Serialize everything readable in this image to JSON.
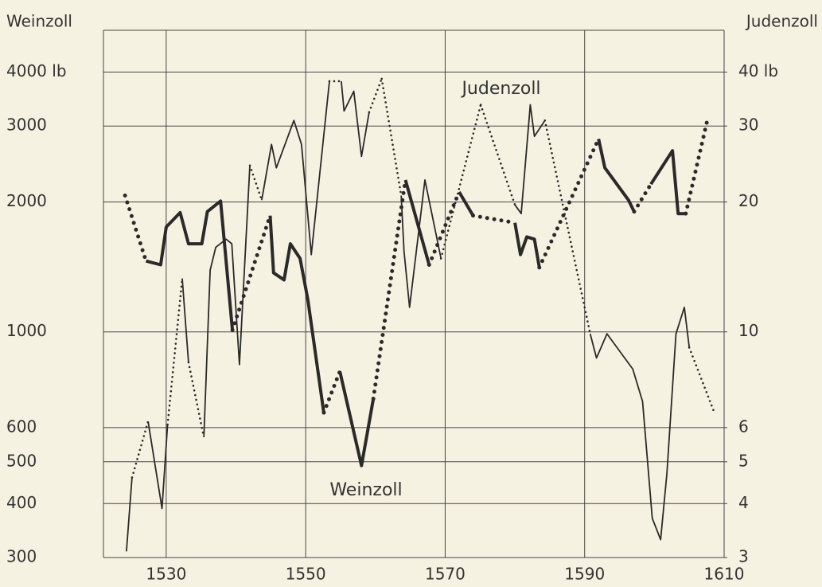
{
  "chart_data": {
    "type": "line",
    "log_scale": true,
    "grid": true,
    "y_label": "Weinzoll",
    "y2_label": "Judenzoll",
    "xlim": [
      1521,
      1610
    ],
    "xticks": [
      1530,
      1550,
      1570,
      1590,
      1610
    ],
    "ylim": [
      300,
      5000
    ],
    "yticks": [
      300,
      400,
      500,
      600,
      1000,
      2000,
      3000,
      {
        "value": 4000,
        "label": "4000 lb"
      }
    ],
    "y2lim": [
      3,
      50
    ],
    "y2ticks": [
      3,
      4,
      5,
      6,
      10,
      20,
      30,
      {
        "value": 40,
        "label": "40 lb"
      }
    ],
    "annotations": [
      {
        "text": "Judenzoll",
        "series": 1
      },
      {
        "text": "Weinzoll",
        "series": 0
      }
    ],
    "series": [
      {
        "name": "Weinzoll",
        "color": "#2a2a2a",
        "axis": "y",
        "x": [
          1524.1,
          1525.5,
          1527.1,
          1529.2,
          1530,
          1532,
          1533.2,
          1535.1,
          1535.9,
          1537.8,
          1539.5,
          1542,
          1544.9,
          1545.4,
          1546.9,
          1547.8,
          1549.2,
          1550.3,
          1552.6,
          1553.7,
          1554.9,
          1558,
          1559.7,
          1562,
          1564.3,
          1567.7,
          1570,
          1572,
          1574,
          1577,
          1580,
          1580.8,
          1581.7,
          1582.8,
          1583.5,
          1588,
          1592,
          1592.9,
          1596.3,
          1597.1,
          1598.3,
          1599.5,
          1602.6,
          1603.4,
          1604.5,
          1606,
          1607.7
        ],
        "values": [
          2070,
          null,
          1460,
          1430,
          1750,
          1890,
          1600,
          1600,
          1900,
          2010,
          1010,
          null,
          1860,
          1370,
          1320,
          1600,
          1480,
          1190,
          650,
          null,
          810,
          490,
          700,
          null,
          2250,
          1430,
          null,
          2110,
          1860,
          null,
          1790,
          1510,
          1660,
          1640,
          1410,
          null,
          2800,
          2400,
          2020,
          1900,
          null,
          2200,
          2630,
          1880,
          1880,
          null,
          3150
        ]
      },
      {
        "name": "Judenzoll",
        "color": "#2a2a2a",
        "axis": "y2",
        "x": [
          1524.3,
          1525.1,
          1526.2,
          1527.4,
          1529.4,
          1530.2,
          1531.2,
          1532.3,
          1533.2,
          1534.3,
          1535.4,
          1536.3,
          1537.1,
          1538.6,
          1539.4,
          1540.5,
          1542,
          1542.9,
          1543.7,
          1545.1,
          1545.8,
          1548.3,
          1549.4,
          1550.8,
          1553.4,
          1554.2,
          1555.1,
          1555.5,
          1556.9,
          1558,
          1559.1,
          1560,
          1560.9,
          1562.3,
          1563.7,
          1564.1,
          1564.9,
          1567.1,
          1569.4,
          1572,
          1575.1,
          1577.5,
          1580,
          1580.9,
          1582.2,
          1582.8,
          1584.3,
          1587.5,
          1590.8,
          1591.7,
          1593.2,
          1596.9,
          1598.3,
          1599.7,
          1600.9,
          1601.8,
          1603.1,
          1604.3,
          1605,
          1606.8,
          1608.6
        ],
        "values": [
          3.1,
          4.6,
          null,
          6.2,
          3.9,
          6.1,
          null,
          13.3,
          8.5,
          null,
          5.7,
          13.9,
          15.7,
          16.4,
          16.0,
          8.4,
          24.3,
          null,
          20.2,
          27.2,
          24,
          30.9,
          27.2,
          15.1,
          38.1,
          null,
          38.1,
          32.5,
          36.1,
          25.5,
          32.3,
          null,
          38.6,
          null,
          20.7,
          15.4,
          11.4,
          22.5,
          14.8,
          null,
          33.6,
          null,
          19.7,
          18.8,
          33.6,
          28.4,
          30.9,
          null,
          9.9,
          8.7,
          9.9,
          8.2,
          6.9,
          3.7,
          3.3,
          4.7,
          9.9,
          11.4,
          9.2,
          null,
          6.5
        ]
      }
    ]
  }
}
